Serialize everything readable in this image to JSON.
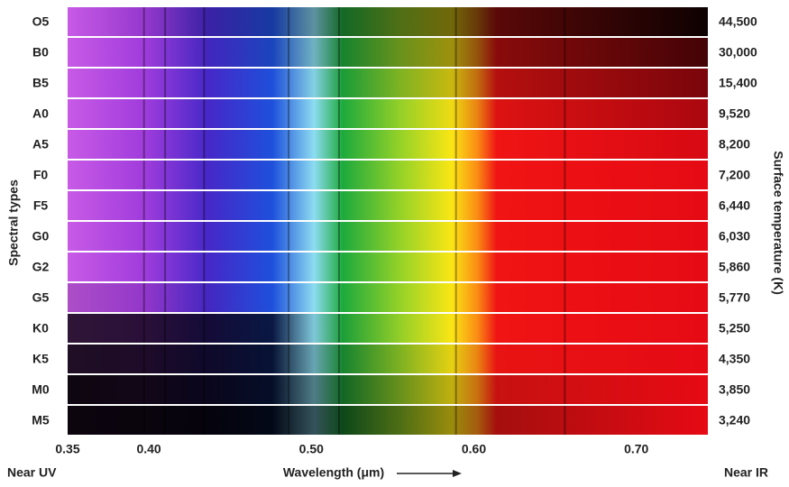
{
  "y_axis_left_label": "Spectral types",
  "y_axis_right_label": "Surface temperature (K)",
  "x_axis": {
    "label": "Wavelength (μm)",
    "left_note": "Near UV",
    "right_note": "Near IR",
    "xlim": [
      0.35,
      0.744
    ],
    "xticks": [
      0.35,
      {
        "value": 0.4,
        "label": "0.40"
      },
      {
        "value": 0.5,
        "label": "0.50"
      },
      {
        "value": 0.6,
        "label": "0.60"
      },
      {
        "value": 0.7,
        "label": "0.70"
      }
    ]
  },
  "rows": [
    {
      "type": "O5",
      "temperature": "44,500"
    },
    {
      "type": "B0",
      "temperature": "30,000"
    },
    {
      "type": "B5",
      "temperature": "15,400"
    },
    {
      "type": "A0",
      "temperature": "9,520"
    },
    {
      "type": "A5",
      "temperature": "8,200"
    },
    {
      "type": "F0",
      "temperature": "7,200"
    },
    {
      "type": "F5",
      "temperature": "6,440"
    },
    {
      "type": "G0",
      "temperature": "6,030"
    },
    {
      "type": "G2",
      "temperature": "5,860"
    },
    {
      "type": "G5",
      "temperature": "5,770"
    },
    {
      "type": "K0",
      "temperature": "5,250"
    },
    {
      "type": "K5",
      "temperature": "4,350"
    },
    {
      "type": "M0",
      "temperature": "3,850"
    },
    {
      "type": "M5",
      "temperature": "3,240"
    }
  ]
}
